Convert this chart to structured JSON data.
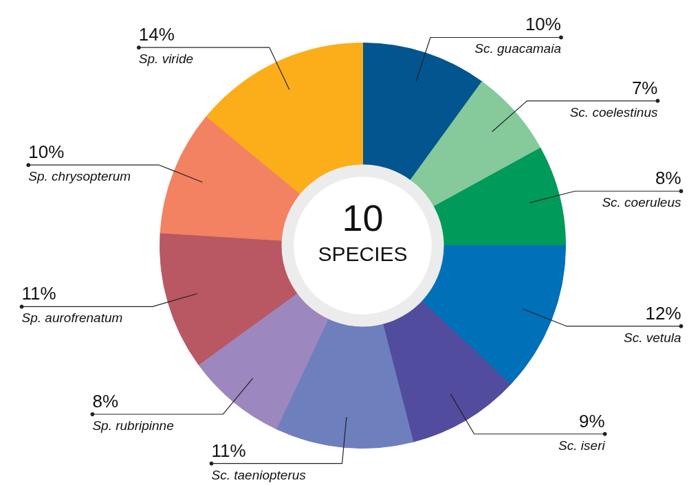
{
  "chart_data": {
    "type": "donut",
    "categories": [
      "Sc. guacamaia",
      "Sc. coelestinus",
      "Sc. coeruleus",
      "Sc. vetula",
      "Sc. iseri",
      "Sc. taeniopterus",
      "Sp. rubripinne",
      "Sp. aurofrenatum",
      "Sp. chrysopterum",
      "Sp. viride"
    ],
    "values": [
      10,
      7,
      8,
      12,
      9,
      11,
      8,
      11,
      10,
      14
    ],
    "colors": [
      "#03558f",
      "#86c99a",
      "#009a5a",
      "#0070b8",
      "#524c9e",
      "#6e7fbd",
      "#9d87bf",
      "#b95762",
      "#f28261",
      "#fbae1a"
    ],
    "value_labels": [
      "10%",
      "7%",
      "8%",
      "12%",
      "9%",
      "11%",
      "8%",
      "11%",
      "10%",
      "14%"
    ],
    "annotations": [
      "10",
      "SPECIES"
    ]
  }
}
